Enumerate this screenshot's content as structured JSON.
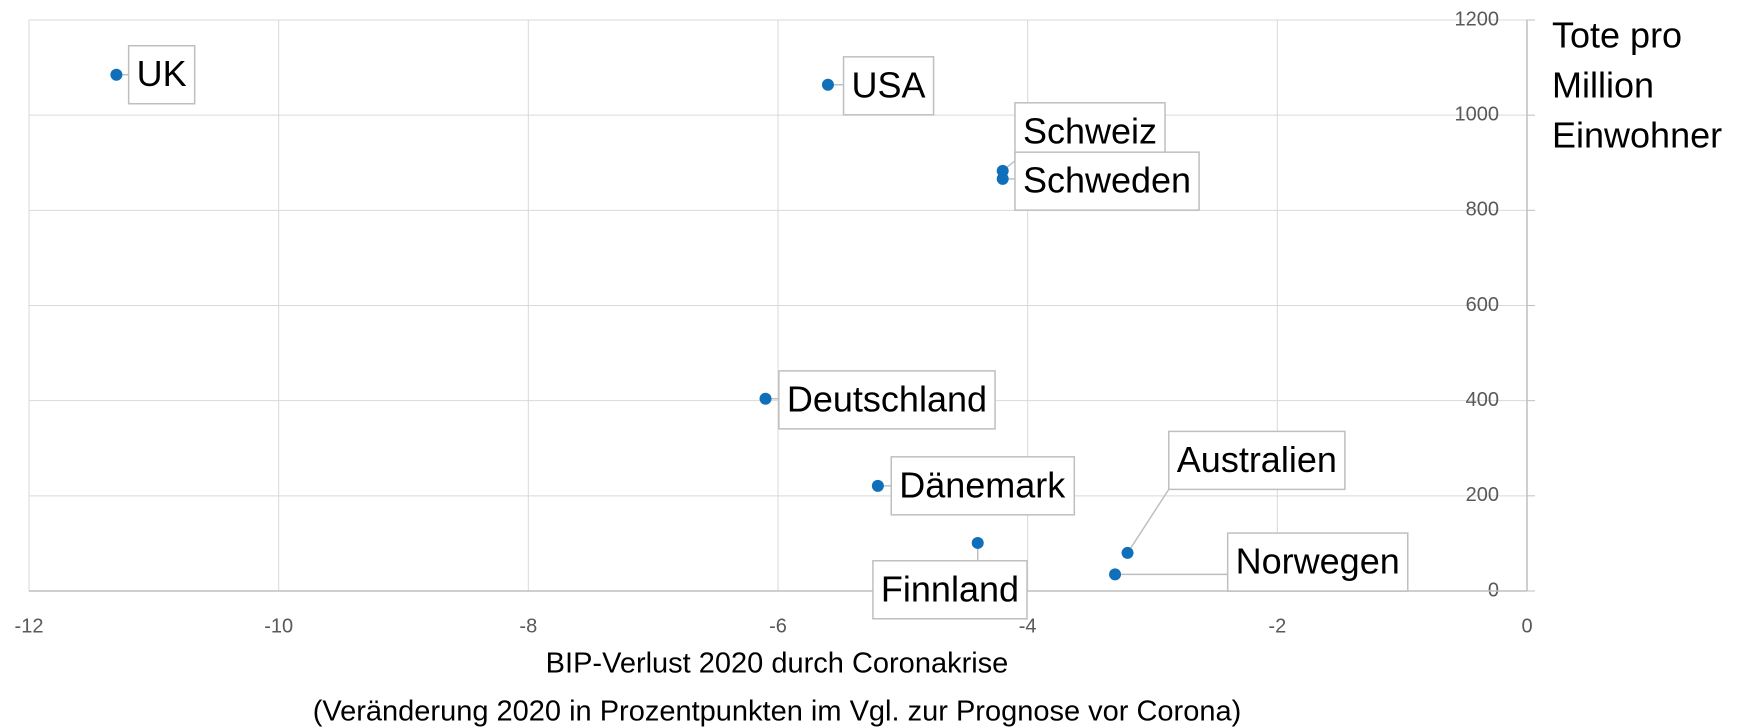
{
  "chart_data": {
    "type": "scatter",
    "points": [
      {
        "label": "UK",
        "x": -11.3,
        "y": 1085
      },
      {
        "label": "USA",
        "x": -5.6,
        "y": 1064
      },
      {
        "label": "Schweiz",
        "x": -4.2,
        "y": 883
      },
      {
        "label": "Schweden",
        "x": -4.2,
        "y": 866
      },
      {
        "label": "Deutschland",
        "x": -6.1,
        "y": 404
      },
      {
        "label": "Dänemark",
        "x": -5.2,
        "y": 221
      },
      {
        "label": "Finnland",
        "x": -4.4,
        "y": 101
      },
      {
        "label": "Australien",
        "x": -3.2,
        "y": 80
      },
      {
        "label": "Norwegen",
        "x": -3.3,
        "y": 35
      }
    ],
    "color": "#0f6fb8",
    "xlim": [
      -12,
      0
    ],
    "xticks": [
      -12,
      -10,
      -8,
      -6,
      -4,
      -2,
      0
    ],
    "ylim": [
      0,
      1200
    ],
    "yticks": [
      0,
      200,
      400,
      600,
      800,
      1000,
      1200
    ],
    "grid": true,
    "xlabel": [
      "BIP-Verlust 2020 durch Coronakrise",
      "(Veränderung 2020 in Prozentpunkten im Vgl. zur Prognose vor Corona)"
    ],
    "ylabel": [
      "Tote pro",
      "Million",
      "Einwohner"
    ]
  }
}
